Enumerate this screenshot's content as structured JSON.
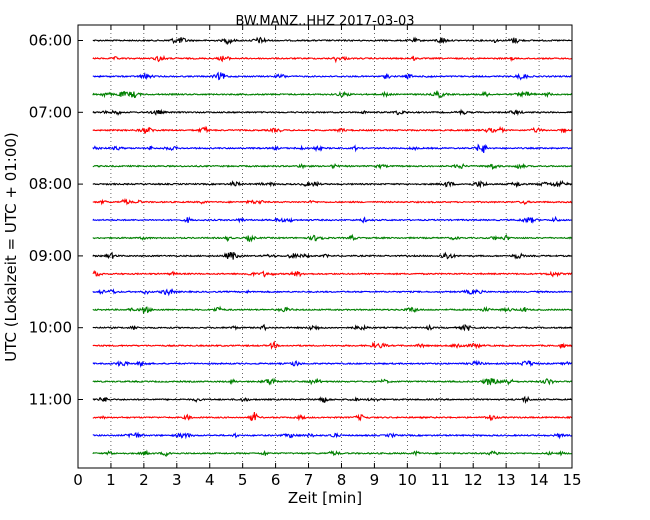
{
  "chart_data": {
    "type": "line",
    "title": "BW.MANZ..HHZ 2017-03-03",
    "xlabel": "Zeit  [min]",
    "ylabel": "UTC (Lokalzeit = UTC + 01:00)",
    "xlim": [
      0,
      15
    ],
    "x_ticks": [
      0,
      1,
      2,
      3,
      4,
      5,
      6,
      7,
      8,
      9,
      10,
      11,
      12,
      13,
      14,
      15
    ],
    "x_tick_labels": [
      "0",
      "1",
      "2",
      "3",
      "4",
      "5",
      "6",
      "7",
      "8",
      "9",
      "10",
      "11",
      "12",
      "13",
      "14",
      "15"
    ],
    "grid": "vertical dotted",
    "legend": "none",
    "y_tick_labels": [
      "06:00",
      "07:00",
      "08:00",
      "09:00",
      "10:00",
      "11:00"
    ],
    "trace_minutes_per_row": 15,
    "trace_colors": [
      "#000000",
      "#ff0000",
      "#0000ff",
      "#008000"
    ],
    "traces": [
      {
        "start": "06:00",
        "color": "#000000"
      },
      {
        "start": "06:15",
        "color": "#ff0000"
      },
      {
        "start": "06:30",
        "color": "#0000ff"
      },
      {
        "start": "06:45",
        "color": "#008000"
      },
      {
        "start": "07:00",
        "color": "#000000"
      },
      {
        "start": "07:15",
        "color": "#ff0000"
      },
      {
        "start": "07:30",
        "color": "#0000ff"
      },
      {
        "start": "07:45",
        "color": "#008000"
      },
      {
        "start": "08:00",
        "color": "#000000"
      },
      {
        "start": "08:15",
        "color": "#ff0000"
      },
      {
        "start": "08:30",
        "color": "#0000ff"
      },
      {
        "start": "08:45",
        "color": "#008000"
      },
      {
        "start": "09:00",
        "color": "#000000"
      },
      {
        "start": "09:15",
        "color": "#ff0000"
      },
      {
        "start": "09:30",
        "color": "#0000ff"
      },
      {
        "start": "09:45",
        "color": "#008000"
      },
      {
        "start": "10:00",
        "color": "#000000"
      },
      {
        "start": "10:15",
        "color": "#ff0000"
      },
      {
        "start": "10:30",
        "color": "#0000ff"
      },
      {
        "start": "10:45",
        "color": "#008000"
      },
      {
        "start": "11:00",
        "color": "#000000"
      },
      {
        "start": "11:15",
        "color": "#ff0000"
      },
      {
        "start": "11:30",
        "color": "#0000ff"
      },
      {
        "start": "11:45",
        "color": "#008000"
      }
    ]
  }
}
